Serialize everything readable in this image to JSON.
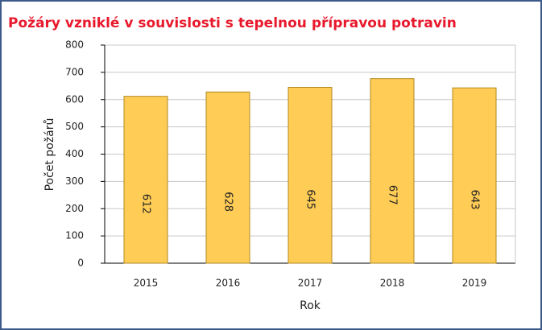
{
  "chart_data": {
    "type": "bar",
    "title": "Požáry vzniklé v souvislosti s tepelnou přípravou potravin",
    "categories": [
      "2015",
      "2016",
      "2017",
      "2018",
      "2019"
    ],
    "values": [
      612,
      628,
      645,
      677,
      643
    ],
    "color": "#ffcc55",
    "xlabel": "Rok",
    "ylabel": "Počet požárů",
    "ylim": [
      0,
      800
    ],
    "yticks": [
      0,
      100,
      200,
      300,
      400,
      500,
      600,
      700,
      800
    ],
    "grid": true
  }
}
